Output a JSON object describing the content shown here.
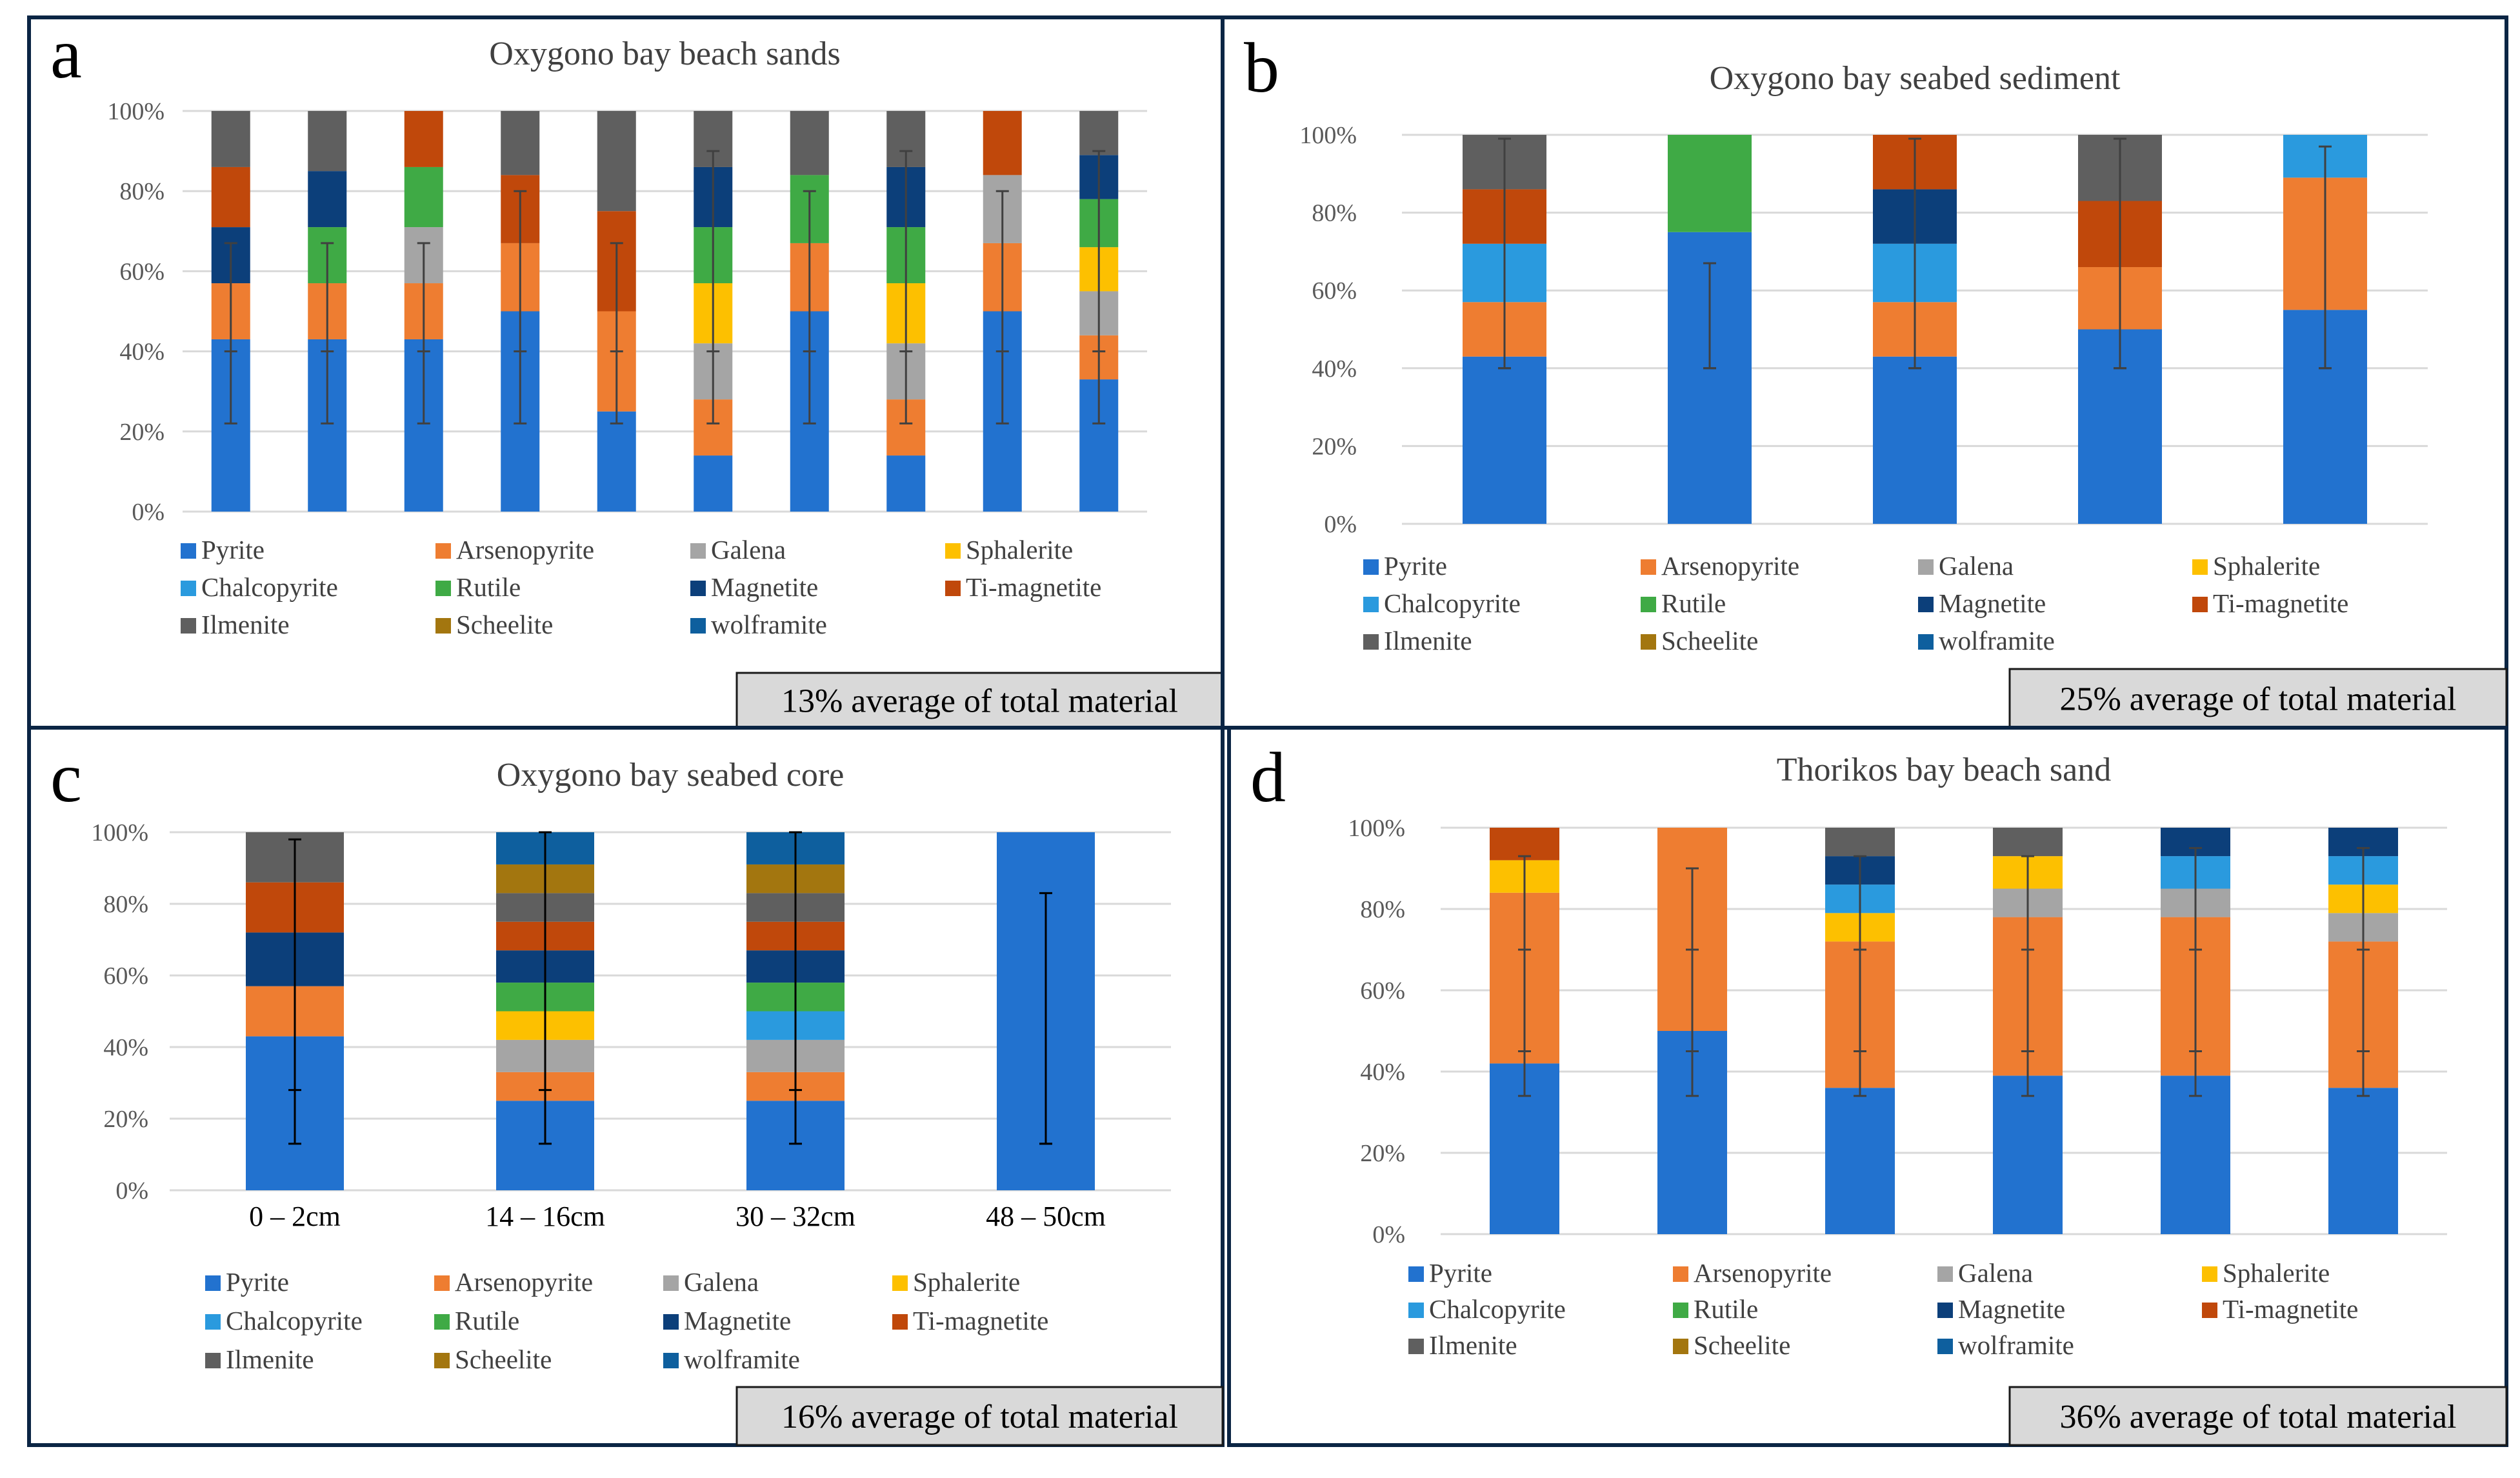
{
  "colors": {
    "Pyrite": "#2272cf",
    "Arsenopyrite": "#ee7d31",
    "Galena": "#a5a5a5",
    "Sphalerite": "#fdc000",
    "Chalcopyrite": "#2a9ade",
    "Rutile": "#3faa45",
    "Magnetite": "#0c3f7a",
    "Ti-magnetite": "#c0480b",
    "Ilmenite": "#5f5f5f",
    "Scheelite": "#a3760f",
    "wolframite": "#0e5f9e"
  },
  "legend_items": [
    "Pyrite",
    "Arsenopyrite",
    "Galena",
    "Sphalerite",
    "Chalcopyrite",
    "Rutile",
    "Magnetite",
    "Ti-magnetite",
    "Ilmenite",
    "Scheelite",
    "wolframite"
  ],
  "y_tick_labels": [
    "0%",
    "20%",
    "40%",
    "60%",
    "80%",
    "100%"
  ],
  "chart_data": [
    {
      "panel_letter": "a",
      "type": "bar",
      "stacked": true,
      "title": "Oxygono bay beach sands",
      "footer": "13%  average  of total material",
      "categories": [
        "",
        "",
        "",
        "",
        "",
        "",
        "",
        "",
        "",
        ""
      ],
      "ylim": [
        0,
        100
      ],
      "series": [
        {
          "name": "Pyrite",
          "values": [
            43,
            43,
            43,
            50,
            25,
            14,
            50,
            14,
            50,
            33
          ]
        },
        {
          "name": "Arsenopyrite",
          "values": [
            14,
            14,
            14,
            17,
            25,
            14,
            17,
            14,
            17,
            11
          ]
        },
        {
          "name": "Galena",
          "values": [
            0,
            0,
            14,
            0,
            0,
            14,
            0,
            14,
            17,
            11
          ]
        },
        {
          "name": "Sphalerite",
          "values": [
            0,
            0,
            0,
            0,
            0,
            15,
            0,
            15,
            0,
            11
          ]
        },
        {
          "name": "Chalcopyrite",
          "values": [
            0,
            0,
            0,
            0,
            0,
            0,
            0,
            0,
            0,
            0
          ]
        },
        {
          "name": "Rutile",
          "values": [
            0,
            14,
            15,
            0,
            0,
            14,
            17,
            14,
            0,
            12
          ]
        },
        {
          "name": "Magnetite",
          "values": [
            14,
            14,
            0,
            0,
            0,
            15,
            0,
            15,
            0,
            11
          ]
        },
        {
          "name": "Ti-magnetite",
          "values": [
            15,
            0,
            14,
            17,
            25,
            0,
            0,
            0,
            16,
            0
          ]
        },
        {
          "name": "Ilmenite",
          "values": [
            14,
            15,
            0,
            16,
            25,
            14,
            16,
            14,
            0,
            11
          ]
        },
        {
          "name": "Scheelite",
          "values": [
            0,
            0,
            0,
            0,
            0,
            0,
            0,
            0,
            0,
            0
          ]
        },
        {
          "name": "wolframite",
          "values": [
            0,
            0,
            0,
            0,
            0,
            0,
            0,
            0,
            0,
            0
          ]
        }
      ],
      "error_bars": [
        [
          40,
          22,
          67
        ],
        [
          40,
          22,
          67
        ],
        [
          40,
          22,
          67
        ],
        [
          40,
          22,
          80
        ],
        [
          40,
          22,
          67
        ],
        [
          40,
          22,
          90
        ],
        [
          40,
          22,
          80
        ],
        [
          40,
          22,
          90
        ],
        [
          40,
          22,
          80
        ],
        [
          40,
          22,
          90
        ]
      ]
    },
    {
      "panel_letter": "b",
      "type": "bar",
      "stacked": true,
      "title": "Oxygono bay seabed sediment",
      "footer": "25%  average  of total material",
      "categories": [
        "",
        "",
        "",
        "",
        ""
      ],
      "ylim": [
        0,
        100
      ],
      "series": [
        {
          "name": "Pyrite",
          "values": [
            43,
            75,
            43,
            50,
            55
          ]
        },
        {
          "name": "Arsenopyrite",
          "values": [
            14,
            0,
            14,
            16,
            34
          ]
        },
        {
          "name": "Galena",
          "values": [
            0,
            0,
            0,
            0,
            0
          ]
        },
        {
          "name": "Sphalerite",
          "values": [
            0,
            0,
            0,
            0,
            0
          ]
        },
        {
          "name": "Chalcopyrite",
          "values": [
            15,
            0,
            15,
            0,
            11
          ]
        },
        {
          "name": "Rutile",
          "values": [
            0,
            25,
            0,
            0,
            0
          ]
        },
        {
          "name": "Magnetite",
          "values": [
            0,
            0,
            14,
            0,
            0
          ]
        },
        {
          "name": "Ti-magnetite",
          "values": [
            14,
            0,
            14,
            17,
            0
          ]
        },
        {
          "name": "Ilmenite",
          "values": [
            14,
            0,
            0,
            17,
            0
          ]
        },
        {
          "name": "Scheelite",
          "values": [
            0,
            0,
            0,
            0,
            0
          ]
        },
        {
          "name": "wolframite",
          "values": [
            0,
            0,
            0,
            0,
            0
          ]
        }
      ],
      "error_bars": [
        [
          40,
          40,
          99
        ],
        [
          40,
          40,
          67
        ],
        [
          40,
          40,
          99
        ],
        [
          40,
          40,
          99
        ],
        [
          40,
          40,
          97
        ]
      ]
    },
    {
      "panel_letter": "c",
      "type": "bar",
      "stacked": true,
      "title": "Oxygono bay seabed core",
      "footer": "16%  average  of total material",
      "categories": [
        "0 – 2cm",
        "14 – 16cm",
        "30 – 32cm",
        "48 – 50cm"
      ],
      "ylim": [
        0,
        100
      ],
      "series": [
        {
          "name": "Pyrite",
          "values": [
            43,
            25,
            25,
            100
          ]
        },
        {
          "name": "Arsenopyrite",
          "values": [
            14,
            8,
            8,
            0
          ]
        },
        {
          "name": "Galena",
          "values": [
            0,
            9,
            9,
            0
          ]
        },
        {
          "name": "Sphalerite",
          "values": [
            0,
            8,
            0,
            0
          ]
        },
        {
          "name": "Chalcopyrite",
          "values": [
            0,
            0,
            8,
            0
          ]
        },
        {
          "name": "Rutile",
          "values": [
            0,
            8,
            8,
            0
          ]
        },
        {
          "name": "Magnetite",
          "values": [
            15,
            9,
            9,
            0
          ]
        },
        {
          "name": "Ti-magnetite",
          "values": [
            14,
            8,
            8,
            0
          ]
        },
        {
          "name": "Ilmenite",
          "values": [
            14,
            8,
            8,
            0
          ]
        },
        {
          "name": "Scheelite",
          "values": [
            0,
            8,
            8,
            0
          ]
        },
        {
          "name": "wolframite",
          "values": [
            0,
            9,
            9,
            0
          ]
        }
      ],
      "error_bars": [
        [
          28,
          13,
          98
        ],
        [
          28,
          13,
          100
        ],
        [
          28,
          13,
          100
        ],
        [
          13,
          13,
          83
        ]
      ]
    },
    {
      "panel_letter": "d",
      "type": "bar",
      "stacked": true,
      "title": "Thorikos bay beach sand",
      "footer": "36%  average  of total material",
      "categories": [
        "",
        "",
        "",
        "",
        "",
        ""
      ],
      "ylim": [
        0,
        100
      ],
      "series": [
        {
          "name": "Pyrite",
          "values": [
            42,
            50,
            36,
            39,
            39,
            36
          ]
        },
        {
          "name": "Arsenopyrite",
          "values": [
            42,
            50,
            36,
            39,
            39,
            36
          ]
        },
        {
          "name": "Galena",
          "values": [
            0,
            0,
            0,
            7,
            7,
            7
          ]
        },
        {
          "name": "Sphalerite",
          "values": [
            8,
            0,
            7,
            8,
            0,
            7
          ]
        },
        {
          "name": "Chalcopyrite",
          "values": [
            0,
            0,
            7,
            0,
            8,
            7
          ]
        },
        {
          "name": "Rutile",
          "values": [
            0,
            0,
            0,
            0,
            0,
            0
          ]
        },
        {
          "name": "Magnetite",
          "values": [
            0,
            0,
            7,
            0,
            7,
            7
          ]
        },
        {
          "name": "Ti-magnetite",
          "values": [
            8,
            0,
            0,
            0,
            0,
            0
          ]
        },
        {
          "name": "Ilmenite",
          "values": [
            0,
            0,
            7,
            7,
            0,
            0
          ]
        },
        {
          "name": "Scheelite",
          "values": [
            0,
            0,
            0,
            0,
            0,
            0
          ]
        },
        {
          "name": "wolframite",
          "values": [
            0,
            0,
            0,
            0,
            0,
            0
          ]
        }
      ],
      "error_bars": [
        [
          34,
          45,
          70,
          93
        ],
        [
          34,
          45,
          70,
          90
        ],
        [
          34,
          45,
          70,
          93
        ],
        [
          34,
          45,
          70,
          93
        ],
        [
          34,
          45,
          70,
          95
        ],
        [
          34,
          45,
          70,
          95
        ]
      ]
    }
  ]
}
